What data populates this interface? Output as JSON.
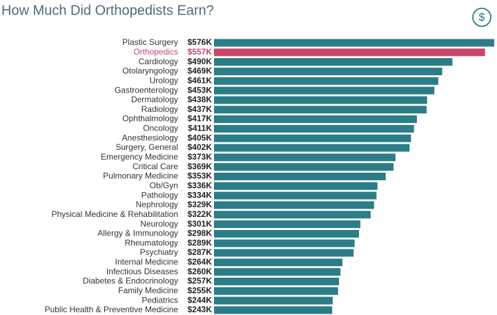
{
  "chart_data": {
    "type": "hbar",
    "title": "How Much Did Orthopedists Earn?",
    "icon": "$",
    "categories": [
      "Plastic Surgery",
      "Orthopedics",
      "Cardiology",
      "Otolaryngology",
      "Urology",
      "Gastroenterology",
      "Dermatology",
      "Radiology",
      "Ophthalmology",
      "Oncology",
      "Anesthesiology",
      "Surgery, General",
      "Emergency Medicine",
      "Critical Care",
      "Pulmonary Medicine",
      "Ob/Gyn",
      "Pathology",
      "Nephrology",
      "Physical Medicine & Rehabilitation",
      "Neurology",
      "Allergy & Immunology",
      "Rheumatology",
      "Psychiatry",
      "Internal Medicine",
      "Infectious Diseases",
      "Diabetes & Endocrinology",
      "Family Medicine",
      "Pediatrics",
      "Public Health & Preventive Medicine"
    ],
    "values": [
      576,
      557,
      490,
      469,
      461,
      453,
      438,
      437,
      417,
      411,
      405,
      402,
      373,
      369,
      353,
      336,
      334,
      329,
      322,
      301,
      298,
      289,
      287,
      264,
      260,
      257,
      255,
      244,
      243
    ],
    "value_labels": [
      "$576K",
      "$557K",
      "$490K",
      "$469K",
      "$461K",
      "$453K",
      "$438K",
      "$437K",
      "$417K",
      "$411K",
      "$405K",
      "$402K",
      "$373K",
      "$369K",
      "$353K",
      "$336K",
      "$334K",
      "$329K",
      "$322K",
      "$301K",
      "$298K",
      "$289K",
      "$287K",
      "$264K",
      "$260K",
      "$257K",
      "$255K",
      "$244K",
      "$243K"
    ],
    "color": "#2b7d86",
    "colors": [
      "#2b7d86",
      "#c9466b",
      "#2b7d86",
      "#2b7d86",
      "#2b7d86",
      "#2b7d86",
      "#2b7d86",
      "#2b7d86",
      "#2b7d86",
      "#2b7d86",
      "#2b7d86",
      "#2b7d86",
      "#2b7d86",
      "#2b7d86",
      "#2b7d86",
      "#2b7d86",
      "#2b7d86",
      "#2b7d86",
      "#2b7d86",
      "#2b7d86",
      "#2b7d86",
      "#2b7d86",
      "#2b7d86",
      "#2b7d86",
      "#2b7d86",
      "#2b7d86",
      "#2b7d86",
      "#2b7d86",
      "#2b7d86"
    ]
  }
}
